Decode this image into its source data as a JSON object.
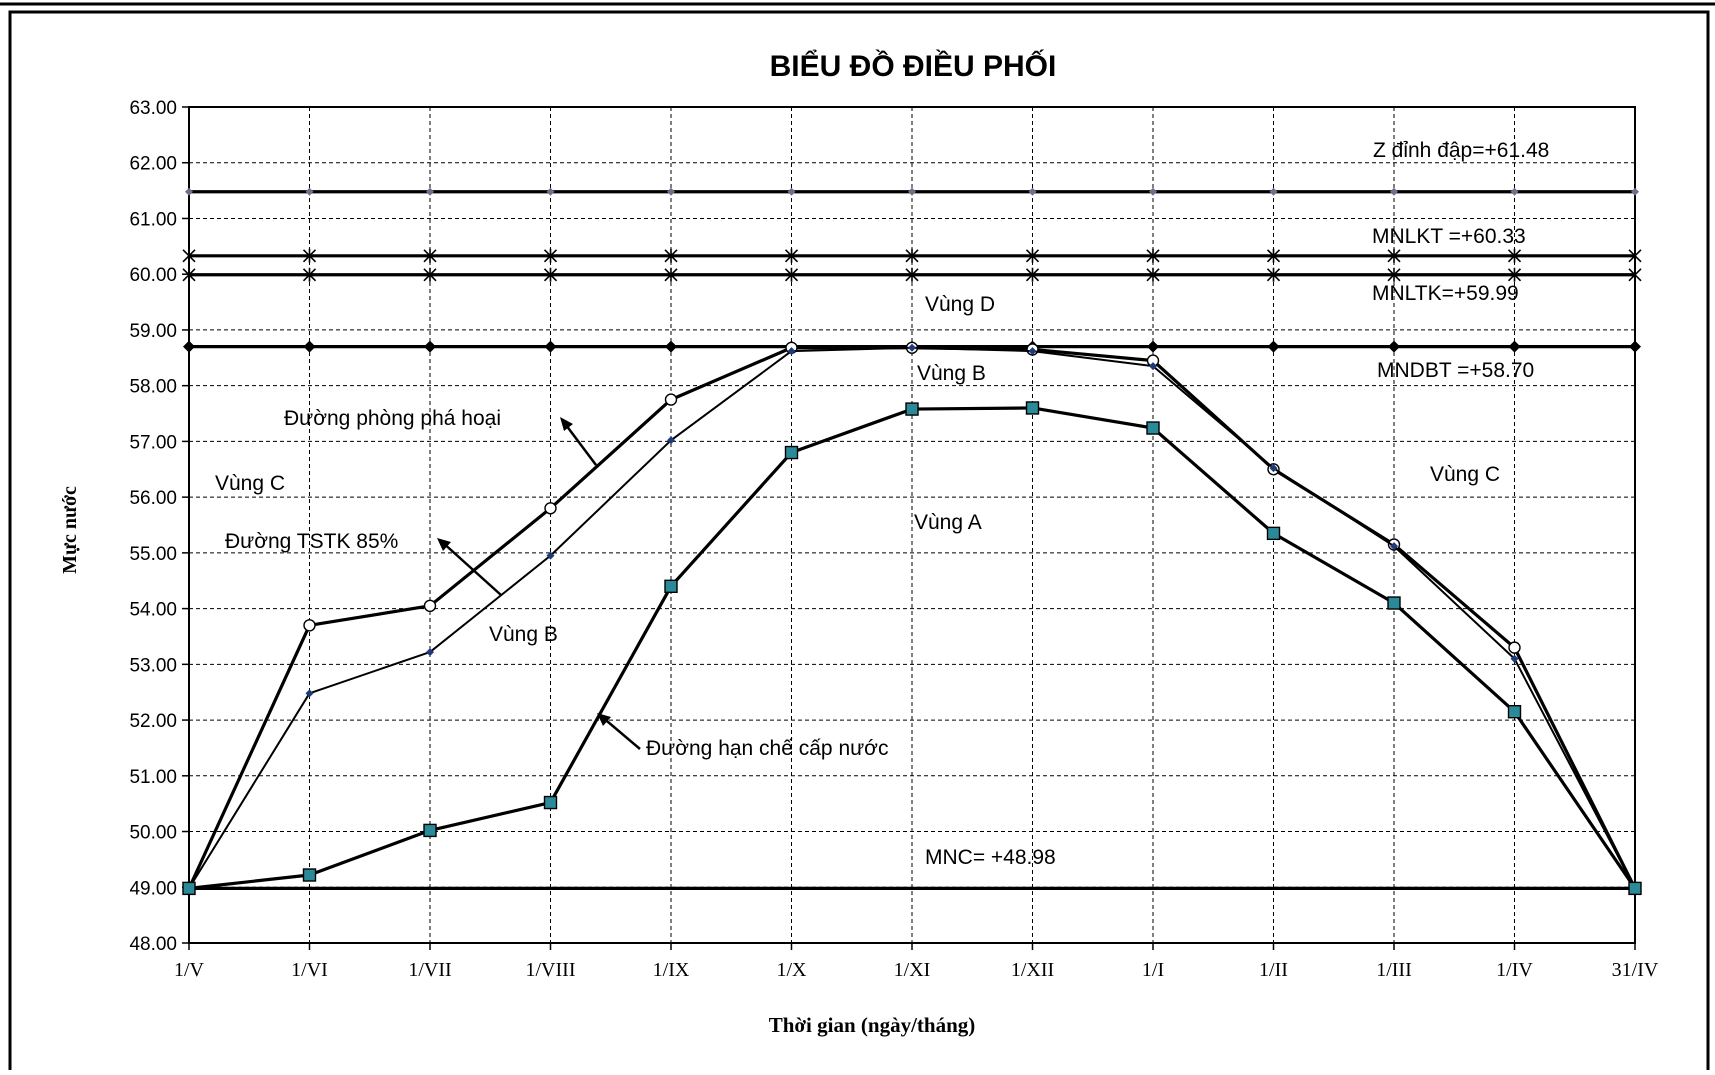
{
  "chart_data": {
    "type": "line",
    "title": "BIỂU ĐỒ ĐIỀU PHỐI",
    "xlabel": "Thời gian (ngày/tháng)",
    "ylabel": "Mực nước",
    "categories": [
      "1/V",
      "1/VI",
      "1/VII",
      "1/VIII",
      "1/IX",
      "1/X",
      "1/XI",
      "1/XII",
      "1/I",
      "1/II",
      "1/III",
      "1/IV",
      "31/IV"
    ],
    "ylim": [
      48,
      63
    ],
    "yticks": [
      "48.00",
      "49.00",
      "50.00",
      "51.00",
      "52.00",
      "53.00",
      "54.00",
      "55.00",
      "56.00",
      "57.00",
      "58.00",
      "59.00",
      "60.00",
      "61.00",
      "62.00",
      "63.00"
    ],
    "grid": true,
    "series": [
      {
        "marker": "diamond",
        "values": [
          61.48,
          61.48,
          61.48,
          61.48,
          61.48,
          61.48,
          61.48,
          61.48,
          61.48,
          61.48,
          61.48,
          61.48,
          61.48
        ]
      },
      {
        "marker": "star",
        "values": [
          60.33,
          60.33,
          60.33,
          60.33,
          60.33,
          60.33,
          60.33,
          60.33,
          60.33,
          60.33,
          60.33,
          60.33,
          60.33
        ]
      },
      {
        "marker": "star",
        "values": [
          59.99,
          59.99,
          59.99,
          59.99,
          59.99,
          59.99,
          59.99,
          59.99,
          59.99,
          59.99,
          59.99,
          59.99,
          59.99
        ]
      },
      {
        "marker": "diamond",
        "values": [
          58.7,
          58.7,
          58.7,
          58.7,
          58.7,
          58.7,
          58.7,
          58.7,
          58.7,
          58.7,
          58.7,
          58.7,
          58.7
        ]
      },
      {
        "marker": "none",
        "values": [
          48.98,
          48.98,
          48.98,
          48.98,
          48.98,
          48.98,
          48.98,
          48.98,
          48.98,
          48.98,
          48.98,
          48.98,
          48.98
        ]
      },
      {
        "marker": "circle",
        "values": [
          48.98,
          53.7,
          54.05,
          55.8,
          57.75,
          58.68,
          58.68,
          58.65,
          58.45,
          56.5,
          55.15,
          53.3,
          48.98
        ]
      },
      {
        "marker": "small-diamond",
        "values": [
          48.98,
          52.48,
          53.22,
          54.95,
          57.02,
          58.62,
          58.68,
          58.62,
          58.35,
          56.52,
          55.12,
          53.1,
          48.98
        ]
      },
      {
        "marker": "square",
        "values": [
          48.98,
          49.22,
          50.02,
          50.52,
          54.4,
          56.8,
          57.58,
          57.6,
          57.24,
          55.35,
          54.1,
          52.15,
          48.98
        ]
      }
    ],
    "annotations": [
      {
        "id": "zdinh",
        "text": "Z đỉnh đập=+61.48"
      },
      {
        "id": "mnlkt",
        "text": "MNLKT =+60.33"
      },
      {
        "id": "mnltk",
        "text": "MNLTK=+59.99"
      },
      {
        "id": "mndbt",
        "text": "MNDBT =+58.70"
      },
      {
        "id": "mnc",
        "text": "MNC= +48.98"
      },
      {
        "id": "vung-d",
        "text": "Vùng D"
      },
      {
        "id": "vung-b-top",
        "text": "Vùng B"
      },
      {
        "id": "vung-a",
        "text": "Vùng A"
      },
      {
        "id": "vung-c-left",
        "text": "Vùng C"
      },
      {
        "id": "vung-c-right",
        "text": "Vùng C"
      },
      {
        "id": "vung-b-mid",
        "text": "Vùng B"
      },
      {
        "id": "duong-phong-pha-hoai",
        "text": "Đường phòng phá hoại"
      },
      {
        "id": "duong-tstk",
        "text": "Đường TSTK 85%"
      },
      {
        "id": "duong-han-che",
        "text": "Đường hạn chế cấp nước"
      }
    ]
  }
}
